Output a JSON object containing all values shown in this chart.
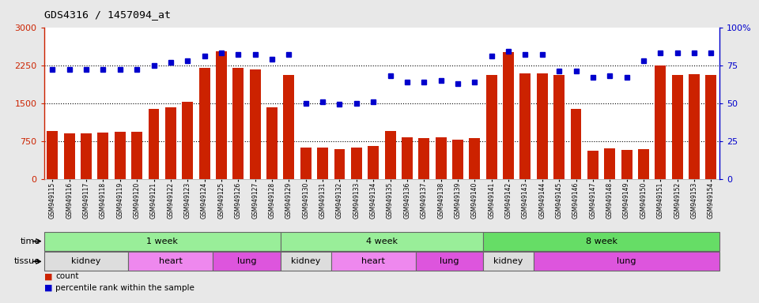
{
  "title": "GDS4316 / 1457094_at",
  "samples": [
    "GSM949115",
    "GSM949116",
    "GSM949117",
    "GSM949118",
    "GSM949119",
    "GSM949120",
    "GSM949121",
    "GSM949122",
    "GSM949123",
    "GSM949124",
    "GSM949125",
    "GSM949126",
    "GSM949127",
    "GSM949128",
    "GSM949129",
    "GSM949130",
    "GSM949131",
    "GSM949132",
    "GSM949133",
    "GSM949134",
    "GSM949135",
    "GSM949136",
    "GSM949137",
    "GSM949138",
    "GSM949139",
    "GSM949140",
    "GSM949141",
    "GSM949142",
    "GSM949143",
    "GSM949144",
    "GSM949145",
    "GSM949146",
    "GSM949147",
    "GSM949148",
    "GSM949149",
    "GSM949150",
    "GSM949151",
    "GSM949152",
    "GSM949153",
    "GSM949154"
  ],
  "counts": [
    950,
    900,
    900,
    920,
    930,
    935,
    1380,
    1420,
    1520,
    2200,
    2520,
    2190,
    2160,
    1420,
    2060,
    620,
    625,
    580,
    620,
    650,
    940,
    820,
    800,
    820,
    770,
    800,
    2050,
    2510,
    2090,
    2080,
    2060,
    1380,
    560,
    600,
    570,
    580,
    2250,
    2060,
    2070,
    2060
  ],
  "percentile": [
    72,
    72,
    72,
    72,
    72,
    72,
    75,
    77,
    78,
    81,
    83,
    82,
    82,
    79,
    82,
    50,
    51,
    49,
    50,
    51,
    68,
    64,
    64,
    65,
    63,
    64,
    81,
    84,
    82,
    82,
    71,
    71,
    67,
    68,
    67,
    78,
    83,
    83,
    83,
    83
  ],
  "bar_color": "#cc2200",
  "dot_color": "#0000cc",
  "ylim_left": [
    0,
    3000
  ],
  "yticks_left": [
    0,
    750,
    1500,
    2250,
    3000
  ],
  "yticks_right": [
    0,
    25,
    50,
    75,
    100
  ],
  "time_groups": [
    {
      "label": "1 week",
      "start": 0,
      "end": 14,
      "color": "#99ee99"
    },
    {
      "label": "4 week",
      "start": 14,
      "end": 26,
      "color": "#99ee99"
    },
    {
      "label": "8 week",
      "start": 26,
      "end": 40,
      "color": "#66dd66"
    }
  ],
  "tissue_groups": [
    {
      "label": "kidney",
      "start": 0,
      "end": 5,
      "color": "#dddddd"
    },
    {
      "label": "heart",
      "start": 5,
      "end": 10,
      "color": "#ee88ee"
    },
    {
      "label": "lung",
      "start": 10,
      "end": 14,
      "color": "#dd55dd"
    },
    {
      "label": "kidney",
      "start": 14,
      "end": 17,
      "color": "#dddddd"
    },
    {
      "label": "heart",
      "start": 17,
      "end": 22,
      "color": "#ee88ee"
    },
    {
      "label": "lung",
      "start": 22,
      "end": 26,
      "color": "#dd55dd"
    },
    {
      "label": "kidney",
      "start": 26,
      "end": 29,
      "color": "#dddddd"
    },
    {
      "label": "lung",
      "start": 29,
      "end": 40,
      "color": "#dd55dd"
    }
  ],
  "fig_bg": "#e8e8e8",
  "plot_bg": "#ffffff"
}
